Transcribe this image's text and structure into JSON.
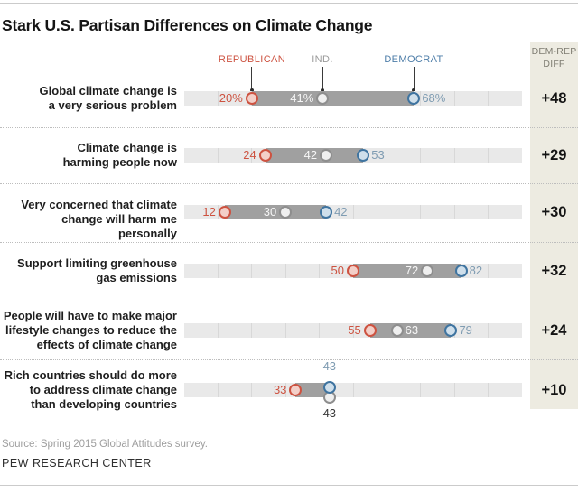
{
  "title": "Stark U.S. Partisan Differences on Climate Change",
  "legend": {
    "republican": "REPUBLICAN",
    "independent": "IND.",
    "democrat": "DEMOCRAT"
  },
  "diff_column": {
    "header_line1": "DEM-REP",
    "header_line2": "DIFF"
  },
  "source_note": "Source: Spring 2015 Global Attitudes survey.",
  "branding": "PEW RESEARCH CENTER",
  "colors": {
    "republican_stroke": "#cd5240",
    "republican_fill": "#f3cfc8",
    "republican_text": "#cd5240",
    "independent_stroke": "#8e8e8e",
    "independent_fill": "#efefef",
    "independent_legend_text": "#9a9a9a",
    "independent_value_on_bar": "#f7f7f7",
    "democrat_stroke": "#3f74a0",
    "democrat_fill": "#cfdfeb",
    "democrat_legend_text": "#4d7da8",
    "democrat_value_text": "#7f9cb2",
    "stacked_gray_value_text": "#3a3a3a",
    "track": "#e9e9e9",
    "gap_bar": "#a0a0a0",
    "diff_panel_bg": "#edebe1"
  },
  "chart_data": {
    "type": "dumbbell-dot-plot",
    "axis": {
      "min": 0,
      "max": 100,
      "tick_step": 10,
      "grid": "ticks-every-10"
    },
    "legend_position": "top",
    "rows": [
      {
        "label_lines": [
          "Global climate change is",
          "a very serious problem"
        ],
        "rep": 20,
        "ind": 41,
        "dem": 68,
        "rep_text": "20%",
        "ind_text": "41%",
        "dem_text": "68%",
        "diff": "+48",
        "ind_label_side": "left",
        "stacked": false
      },
      {
        "label_lines": [
          "Climate change is",
          "harming people now"
        ],
        "rep": 24,
        "ind": 42,
        "dem": 53,
        "rep_text": "24",
        "ind_text": "42",
        "dem_text": "53",
        "diff": "+29",
        "ind_label_side": "left",
        "stacked": false
      },
      {
        "label_lines": [
          "Very concerned that climate",
          "change will harm me personally"
        ],
        "rep": 12,
        "ind": 30,
        "dem": 42,
        "rep_text": "12",
        "ind_text": "30",
        "dem_text": "42",
        "diff": "+30",
        "ind_label_side": "left",
        "stacked": false
      },
      {
        "label_lines": [
          "Support limiting greenhouse",
          "gas emissions"
        ],
        "rep": 50,
        "ind": 72,
        "dem": 82,
        "rep_text": "50",
        "ind_text": "72",
        "dem_text": "82",
        "diff": "+32",
        "ind_label_side": "left",
        "stacked": false
      },
      {
        "label_lines": [
          "People will have to make major",
          "lifestyle changes to reduce the",
          "effects of climate change"
        ],
        "rep": 55,
        "ind": 63,
        "dem": 79,
        "rep_text": "55",
        "ind_text": "63",
        "dem_text": "79",
        "diff": "+24",
        "ind_label_side": "right",
        "stacked": false
      },
      {
        "label_lines": [
          "Rich countries should do more",
          "to address climate change",
          "than developing countries"
        ],
        "rep": 33,
        "ind": 43,
        "dem": 43,
        "rep_text": "33",
        "ind_text": "43",
        "dem_text": "43",
        "diff": "+10",
        "ind_label_side": "below",
        "stacked": true
      }
    ]
  }
}
